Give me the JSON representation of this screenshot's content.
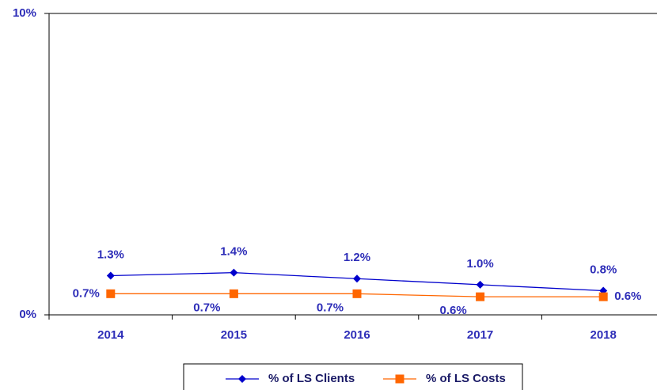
{
  "chart_data": {
    "type": "line",
    "categories": [
      "2014",
      "2015",
      "2016",
      "2017",
      "2018"
    ],
    "series": [
      {
        "name": "% of LS Clients",
        "color": "#0000cc",
        "marker": "diamond",
        "values": [
          1.3,
          1.4,
          1.2,
          1.0,
          0.8
        ],
        "value_labels": [
          "1.3%",
          "1.4%",
          "1.2%",
          "1.0%",
          "0.8%"
        ]
      },
      {
        "name": "% of LS Costs",
        "color": "#ff6600",
        "marker": "square",
        "values": [
          0.7,
          0.7,
          0.7,
          0.6,
          0.6
        ],
        "value_labels": [
          "0.7%",
          "0.7%",
          "0.7%",
          "0.6%",
          "0.6%"
        ]
      }
    ],
    "ylim": [
      0,
      10
    ],
    "yticks": [
      {
        "value": 0,
        "label": "0%"
      },
      {
        "value": 10,
        "label": "10%"
      }
    ],
    "legend": "bottom"
  }
}
